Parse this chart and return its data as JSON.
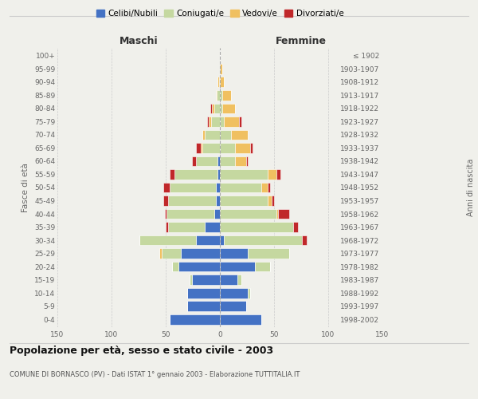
{
  "age_groups": [
    "0-4",
    "5-9",
    "10-14",
    "15-19",
    "20-24",
    "25-29",
    "30-34",
    "35-39",
    "40-44",
    "45-49",
    "50-54",
    "55-59",
    "60-64",
    "65-69",
    "70-74",
    "75-79",
    "80-84",
    "85-89",
    "90-94",
    "95-99",
    "100+"
  ],
  "birth_years": [
    "1998-2002",
    "1993-1997",
    "1988-1992",
    "1983-1987",
    "1978-1982",
    "1973-1977",
    "1968-1972",
    "1963-1967",
    "1958-1962",
    "1953-1957",
    "1948-1952",
    "1943-1947",
    "1938-1942",
    "1933-1937",
    "1928-1932",
    "1923-1927",
    "1918-1922",
    "1913-1917",
    "1908-1912",
    "1903-1907",
    "≤ 1902"
  ],
  "maschi": {
    "celibi": [
      46,
      30,
      30,
      26,
      38,
      36,
      22,
      14,
      5,
      4,
      4,
      2,
      2,
      0,
      0,
      0,
      0,
      0,
      0,
      0,
      0
    ],
    "coniugati": [
      0,
      0,
      0,
      2,
      6,
      18,
      52,
      34,
      44,
      44,
      42,
      40,
      20,
      16,
      14,
      8,
      5,
      3,
      1,
      0,
      0
    ],
    "vedovi": [
      0,
      0,
      0,
      0,
      0,
      2,
      0,
      0,
      0,
      0,
      0,
      0,
      0,
      2,
      2,
      2,
      2,
      1,
      1,
      0,
      0
    ],
    "divorziati": [
      0,
      0,
      0,
      0,
      0,
      0,
      0,
      2,
      2,
      4,
      6,
      4,
      4,
      4,
      0,
      2,
      2,
      0,
      0,
      0,
      0
    ]
  },
  "femmine": {
    "nubili": [
      38,
      24,
      26,
      16,
      32,
      26,
      4,
      0,
      0,
      0,
      0,
      0,
      0,
      0,
      0,
      0,
      0,
      0,
      0,
      0,
      0
    ],
    "coniugate": [
      0,
      0,
      2,
      4,
      14,
      38,
      72,
      68,
      52,
      44,
      38,
      44,
      14,
      14,
      10,
      4,
      2,
      2,
      0,
      0,
      0
    ],
    "vedove": [
      0,
      0,
      0,
      0,
      0,
      0,
      0,
      0,
      2,
      4,
      6,
      8,
      10,
      14,
      16,
      14,
      12,
      8,
      4,
      2,
      0
    ],
    "divorziate": [
      0,
      0,
      0,
      0,
      0,
      0,
      4,
      4,
      10,
      2,
      2,
      4,
      2,
      2,
      0,
      2,
      0,
      0,
      0,
      0,
      0
    ]
  },
  "colors": {
    "celibi_nubili": "#4472c4",
    "coniugati": "#c5d8a0",
    "vedovi": "#f0c060",
    "divorziati": "#c0282a"
  },
  "xlim": 150,
  "title": "Popolazione per età, sesso e stato civile - 2003",
  "subtitle": "COMUNE DI BORNASCO (PV) - Dati ISTAT 1° gennaio 2003 - Elaborazione TUTTITALIA.IT",
  "ylabel_left": "Fasce di età",
  "ylabel_right": "Anni di nascita",
  "xlabel_maschi": "Maschi",
  "xlabel_femmine": "Femmine",
  "legend_labels": [
    "Celibi/Nubili",
    "Coniugati/e",
    "Vedovi/e",
    "Divorziati/e"
  ],
  "background_color": "#f0f0eb"
}
